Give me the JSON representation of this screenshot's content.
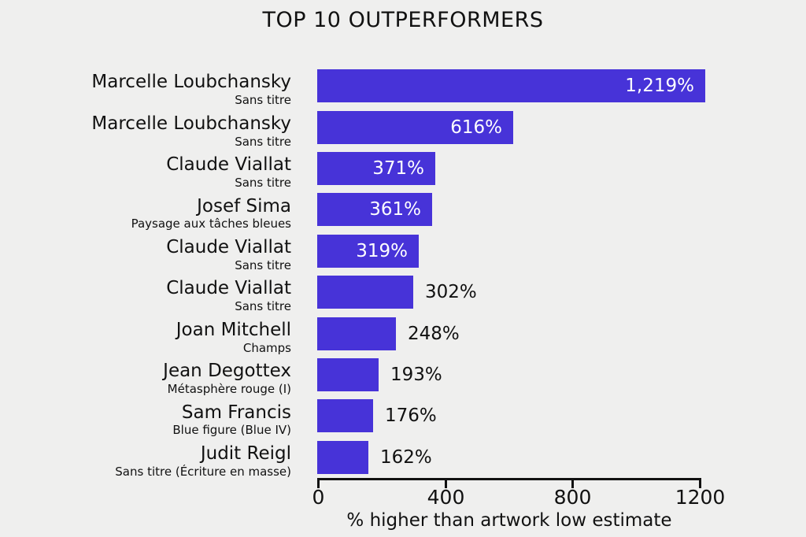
{
  "colors": {
    "background": "#efefee",
    "bar": "#4733d8",
    "text": "#111111",
    "value_inside_text": "#ffffff",
    "axis": "#111111"
  },
  "chart_data": {
    "type": "bar",
    "orientation": "horizontal",
    "title": "TOP 10 OUTPERFORMERS",
    "xlabel": "% higher than artwork low estimate",
    "xlim": [
      0,
      1200
    ],
    "xticks": [
      0,
      400,
      800,
      1200
    ],
    "grid": false,
    "legend": "none",
    "rows": [
      {
        "artist": "Marcelle Loubchansky",
        "work": "Sans titre",
        "value": 1219,
        "value_label": "1,219%"
      },
      {
        "artist": "Marcelle Loubchansky",
        "work": "Sans titre",
        "value": 616,
        "value_label": "616%"
      },
      {
        "artist": "Claude Viallat",
        "work": "Sans titre",
        "value": 371,
        "value_label": "371%"
      },
      {
        "artist": "Josef Sima",
        "work": "Paysage aux tâches bleues",
        "value": 361,
        "value_label": "361%"
      },
      {
        "artist": "Claude Viallat",
        "work": "Sans titre",
        "value": 319,
        "value_label": "319%"
      },
      {
        "artist": "Claude Viallat",
        "work": "Sans titre",
        "value": 302,
        "value_label": "302%"
      },
      {
        "artist": "Joan Mitchell",
        "work": "Champs",
        "value": 248,
        "value_label": "248%"
      },
      {
        "artist": "Jean Degottex",
        "work": "Métasphère rouge (I)",
        "value": 193,
        "value_label": "193%"
      },
      {
        "artist": "Sam Francis",
        "work": "Blue figure (Blue IV)",
        "value": 176,
        "value_label": "176%"
      },
      {
        "artist": "Judit Reigl",
        "work": "Sans titre (Écriture en masse)",
        "value": 162,
        "value_label": "162%"
      }
    ]
  }
}
